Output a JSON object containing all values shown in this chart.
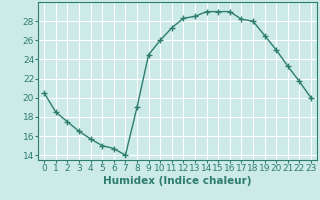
{
  "x": [
    0,
    1,
    2,
    3,
    4,
    5,
    6,
    7,
    8,
    9,
    10,
    11,
    12,
    13,
    14,
    15,
    16,
    17,
    18,
    19,
    20,
    21,
    22,
    23
  ],
  "y": [
    20.5,
    18.5,
    17.5,
    16.5,
    15.7,
    15.0,
    14.7,
    14.0,
    19.0,
    24.5,
    26.0,
    27.3,
    28.3,
    28.5,
    29.0,
    29.0,
    29.0,
    28.2,
    28.0,
    26.5,
    25.0,
    23.3,
    21.7,
    20.0
  ],
  "line_color": "#2e7d6e",
  "marker": "+",
  "marker_size": 4,
  "linewidth": 1.0,
  "bg_color": "#cceae7",
  "grid_color": "#ffffff",
  "grid_minor_color": "#e8f8f8",
  "xlabel": "Humidex (Indice chaleur)",
  "xlim": [
    -0.5,
    23.5
  ],
  "ylim": [
    13.5,
    30.0
  ],
  "yticks": [
    14,
    16,
    18,
    20,
    22,
    24,
    26,
    28
  ],
  "xticks": [
    0,
    1,
    2,
    3,
    4,
    5,
    6,
    7,
    8,
    9,
    10,
    11,
    12,
    13,
    14,
    15,
    16,
    17,
    18,
    19,
    20,
    21,
    22,
    23
  ],
  "tick_label_fontsize": 6.5,
  "xlabel_fontsize": 7.5,
  "spine_color": "#2e7d6e",
  "tick_color": "#2e7d6e",
  "label_color": "#2e7d6e"
}
